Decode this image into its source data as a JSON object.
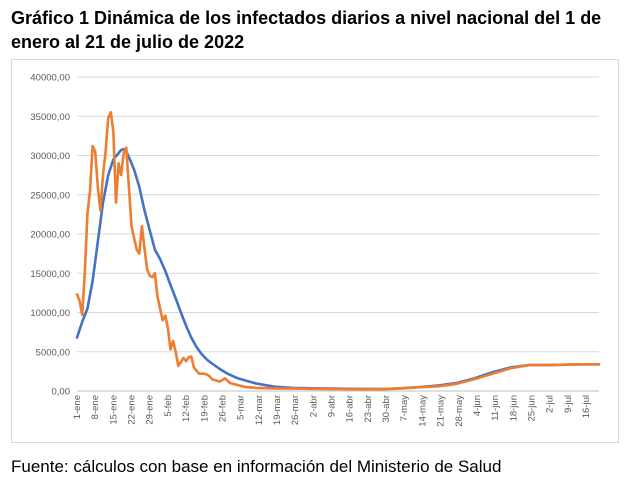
{
  "title": "Gráfico 1 Dinámica de los infectados diarios a nivel nacional del 1 de enero al 21 de julio de 2022",
  "source": "Fuente: cálculos con base en información del Ministerio de Salud",
  "chart_data": {
    "type": "line",
    "title": "",
    "xlabel": "",
    "ylabel": "",
    "ylim": [
      0,
      40000
    ],
    "yticks": [
      "0,00",
      "5000,00",
      "10000,00",
      "15000,00",
      "20000,00",
      "25000,00",
      "30000,00",
      "35000,00",
      "40000,00"
    ],
    "grid": true,
    "legend": "none",
    "x_tick_labels": [
      "1-ene",
      "8-ene",
      "15-ene",
      "22-ene",
      "29-ene",
      "5-feb",
      "12-feb",
      "19-feb",
      "26-feb",
      "5-mar",
      "12-mar",
      "19-mar",
      "26-mar",
      "2-abr",
      "9-abr",
      "16-abr",
      "23-abr",
      "30-abr",
      "7-may",
      "14-may",
      "21-may",
      "28-may",
      "4-jun",
      "11-jun",
      "18-jun",
      "25-jun",
      "2-jul",
      "9-jul",
      "16-jul"
    ],
    "x_range": [
      1,
      202
    ],
    "series": [
      {
        "color": "#4472c4",
        "x": [
          1,
          3,
          5,
          7,
          9,
          11,
          13,
          15,
          17,
          18,
          19,
          20,
          21,
          23,
          25,
          27,
          29,
          31,
          33,
          35,
          37,
          39,
          41,
          43,
          45,
          47,
          49,
          51,
          53,
          56,
          59,
          63,
          70,
          77,
          84,
          91,
          98,
          105,
          112,
          119,
          126,
          133,
          140,
          147,
          154,
          161,
          168,
          175,
          182,
          189,
          196,
          202
        ],
        "values": [
          6800,
          8800,
          10500,
          14000,
          19000,
          24000,
          27500,
          29500,
          30300,
          30700,
          30800,
          30500,
          29800,
          28200,
          26000,
          23000,
          20500,
          18000,
          16800,
          15300,
          13500,
          11800,
          10000,
          8300,
          6800,
          5600,
          4700,
          4000,
          3500,
          2800,
          2200,
          1600,
          950,
          550,
          400,
          350,
          300,
          280,
          270,
          260,
          350,
          500,
          700,
          1000,
          1600,
          2400,
          3000,
          3300,
          3300,
          3350,
          3400,
          3400
        ]
      },
      {
        "color": "#ed7d31",
        "x": [
          1,
          2,
          3,
          4,
          5,
          6,
          7,
          8,
          9,
          10,
          11,
          12,
          13,
          14,
          15,
          16,
          17,
          18,
          19,
          20,
          21,
          22,
          23,
          24,
          25,
          26,
          27,
          28,
          29,
          30,
          31,
          32,
          33,
          34,
          35,
          36,
          37,
          38,
          39,
          40,
          41,
          42,
          43,
          44,
          45,
          46,
          47,
          48,
          49,
          50,
          51,
          52,
          53,
          56,
          58,
          60,
          63,
          66,
          70,
          77,
          84,
          91,
          98,
          105,
          112,
          119,
          126,
          133,
          140,
          147,
          154,
          161,
          168,
          175,
          182,
          189,
          196,
          202
        ],
        "values": [
          12300,
          11500,
          9700,
          15000,
          22500,
          25500,
          31200,
          30500,
          26000,
          23000,
          27500,
          30500,
          34800,
          35500,
          33000,
          24000,
          29000,
          27500,
          30300,
          31000,
          26000,
          21000,
          19500,
          18000,
          17500,
          21000,
          18200,
          15500,
          14700,
          14500,
          15000,
          12000,
          10500,
          9000,
          9600,
          8000,
          5300,
          6400,
          5000,
          3200,
          3700,
          4200,
          3800,
          4300,
          4400,
          3000,
          2600,
          2200,
          2200,
          2200,
          2100,
          1900,
          1500,
          1200,
          1600,
          1000,
          750,
          500,
          400,
          330,
          300,
          280,
          260,
          240,
          220,
          230,
          350,
          480,
          600,
          900,
          1500,
          2200,
          2900,
          3300,
          3300,
          3350,
          3400,
          3400
        ]
      }
    ]
  }
}
